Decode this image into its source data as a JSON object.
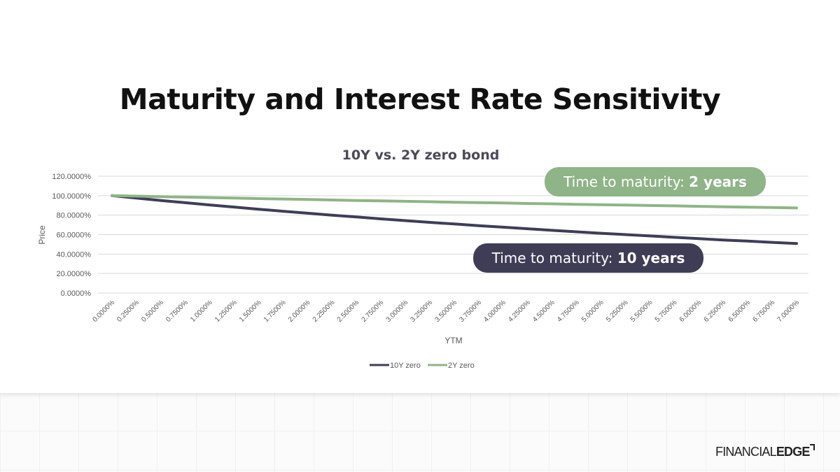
{
  "page": {
    "title": "Maturity and Interest Rate Sensitivity",
    "logo_text_light": "FINANCIAL",
    "logo_text_bold": "EDGE"
  },
  "callouts": {
    "two_year": {
      "prefix": "Time to maturity: ",
      "value": "2 years"
    },
    "ten_year": {
      "prefix": "Time to maturity: ",
      "value": "10 years"
    }
  },
  "colors": {
    "series_10y": "#3f3d56",
    "series_2y": "#8fb487",
    "gridline": "#d9d9d9",
    "text": "#595959"
  },
  "chart_data": {
    "type": "line",
    "title": "10Y vs. 2Y zero bond",
    "xlabel": "YTM",
    "ylabel": "Price",
    "ylim": [
      0,
      120
    ],
    "yticks": [
      "0.0000%",
      "20.0000%",
      "40.0000%",
      "60.0000%",
      "80.0000%",
      "100.0000%",
      "120.0000%"
    ],
    "categories": [
      "0.0000%",
      "0.2500%",
      "0.5000%",
      "0.7500%",
      "1.0000%",
      "1.2500%",
      "1.5000%",
      "1.7500%",
      "2.0000%",
      "2.2500%",
      "2.5000%",
      "2.7500%",
      "3.0000%",
      "3.2500%",
      "3.5000%",
      "3.7500%",
      "4.0000%",
      "4.2500%",
      "4.5000%",
      "4.7500%",
      "5.0000%",
      "5.2500%",
      "5.5000%",
      "5.7500%",
      "6.0000%",
      "6.2500%",
      "6.5000%",
      "6.7500%",
      "7.0000%"
    ],
    "series": [
      {
        "name": "10Y zero",
        "values": [
          100.0,
          97.5,
          95.1,
          92.8,
          90.5,
          88.3,
          86.1,
          84.0,
          82.0,
          80.0,
          78.1,
          76.2,
          74.4,
          72.6,
          70.9,
          69.2,
          67.6,
          66.0,
          64.4,
          62.9,
          61.4,
          60.0,
          58.6,
          57.2,
          55.8,
          54.5,
          53.3,
          52.0,
          50.8
        ]
      },
      {
        "name": "2Y zero",
        "values": [
          100.0,
          99.5,
          99.0,
          98.5,
          98.0,
          97.5,
          97.0,
          96.6,
          96.1,
          95.6,
          95.1,
          94.7,
          94.2,
          93.8,
          93.3,
          92.9,
          92.5,
          92.0,
          91.6,
          91.1,
          90.7,
          90.3,
          89.9,
          89.5,
          89.0,
          88.6,
          88.2,
          87.8,
          87.4
        ]
      }
    ],
    "grid": true,
    "legend_position": "bottom"
  }
}
